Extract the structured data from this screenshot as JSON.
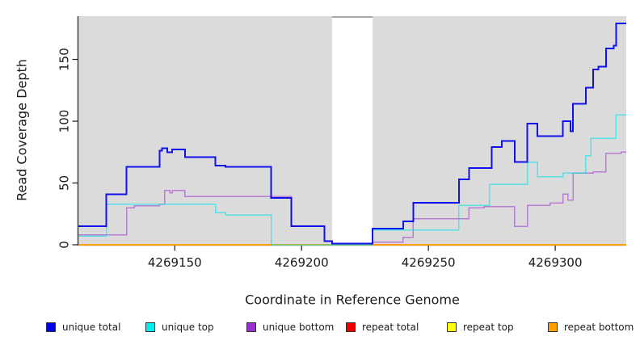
{
  "figure": {
    "xlabel": "Coordinate in Reference Genome",
    "ylabel": "Read Coverage Depth"
  },
  "legend": {
    "items": [
      {
        "label": "unique total",
        "color": "#0000EE"
      },
      {
        "label": "unique top",
        "color": "#00EEEE"
      },
      {
        "label": "unique bottom",
        "color": "#9932CC"
      },
      {
        "label": "repeat total",
        "color": "#EE0000"
      },
      {
        "label": "repeat top",
        "color": "#FFFF00"
      },
      {
        "label": "repeat bottom",
        "color": "#FFA000"
      }
    ]
  },
  "chart_data": {
    "type": "line",
    "step": true,
    "title": "",
    "xlabel": "Coordinate in Reference Genome",
    "ylabel": "Read Coverage Depth",
    "xlim": [
      4269112,
      4269328
    ],
    "ylim": [
      0,
      185
    ],
    "xticks": [
      4269150,
      4269200,
      4269250,
      4269300
    ],
    "yticks": [
      0,
      50,
      100,
      150
    ],
    "grid": false,
    "legend_position": "bottom",
    "panel_background": "#DBDBDB",
    "axis_color": "#1a1a1a",
    "gap_region": {
      "x0": 4269212,
      "x1": 4269228,
      "color": "#FFFFFF",
      "top_edge_color": "#8C8C8C"
    },
    "series": [
      {
        "name": "unique total",
        "color": "#0000EE",
        "width": 2,
        "opacity": 0.92,
        "points": [
          [
            4269112,
            15
          ],
          [
            4269123,
            41
          ],
          [
            4269131,
            63
          ],
          [
            4269144,
            76
          ],
          [
            4269145,
            78
          ],
          [
            4269147,
            75
          ],
          [
            4269149,
            77
          ],
          [
            4269154,
            71
          ],
          [
            4269166,
            64
          ],
          [
            4269170,
            63
          ],
          [
            4269188,
            38
          ],
          [
            4269196,
            15
          ],
          [
            4269209,
            3
          ],
          [
            4269212,
            1
          ],
          [
            4269228,
            13
          ],
          [
            4269240,
            19
          ],
          [
            4269244,
            34
          ],
          [
            4269262,
            53
          ],
          [
            4269266,
            62
          ],
          [
            4269275,
            79
          ],
          [
            4269279,
            84
          ],
          [
            4269284,
            67
          ],
          [
            4269289,
            98
          ],
          [
            4269293,
            88
          ],
          [
            4269303,
            100
          ],
          [
            4269306,
            92
          ],
          [
            4269307,
            114
          ],
          [
            4269312,
            127
          ],
          [
            4269315,
            142
          ],
          [
            4269317,
            144
          ],
          [
            4269320,
            159
          ],
          [
            4269323,
            161
          ],
          [
            4269324,
            179
          ],
          [
            4269328,
            179
          ]
        ]
      },
      {
        "name": "unique top",
        "color": "#00E5E8",
        "width": 1.5,
        "opacity": 0.6,
        "points": [
          [
            4269112,
            7
          ],
          [
            4269123,
            33
          ],
          [
            4269166,
            26
          ],
          [
            4269170,
            24
          ],
          [
            4269188,
            0
          ],
          [
            4269228,
            12
          ],
          [
            4269262,
            32
          ],
          [
            4269274,
            49
          ],
          [
            4269289,
            67
          ],
          [
            4269293,
            55
          ],
          [
            4269303,
            58
          ],
          [
            4269312,
            72
          ],
          [
            4269314,
            86
          ],
          [
            4269324,
            105
          ],
          [
            4269328,
            105
          ]
        ]
      },
      {
        "name": "unique bottom",
        "color": "#9932CC",
        "width": 1.5,
        "opacity": 0.55,
        "points": [
          [
            4269112,
            8
          ],
          [
            4269131,
            30
          ],
          [
            4269134,
            31.5
          ],
          [
            4269144,
            33
          ],
          [
            4269146,
            44
          ],
          [
            4269148,
            42
          ],
          [
            4269149,
            44
          ],
          [
            4269154,
            39
          ],
          [
            4269196,
            15
          ],
          [
            4269209,
            3
          ],
          [
            4269212,
            1
          ],
          [
            4269228,
            2
          ],
          [
            4269240,
            6
          ],
          [
            4269244,
            21
          ],
          [
            4269266,
            30
          ],
          [
            4269272,
            31
          ],
          [
            4269284,
            15
          ],
          [
            4269289,
            32
          ],
          [
            4269298,
            34
          ],
          [
            4269303,
            41
          ],
          [
            4269305,
            36
          ],
          [
            4269307,
            58
          ],
          [
            4269315,
            59
          ],
          [
            4269320,
            74
          ],
          [
            4269326,
            75
          ],
          [
            4269328,
            75
          ]
        ]
      },
      {
        "name": "repeat total",
        "color": "#EE0000",
        "width": 1.5,
        "opacity": 1,
        "points": [
          [
            4269112,
            0
          ],
          [
            4269328,
            0
          ]
        ]
      },
      {
        "name": "repeat top",
        "color": "#FFFF00",
        "width": 1.5,
        "opacity": 1,
        "points": [
          [
            4269112,
            0
          ],
          [
            4269328,
            0
          ]
        ]
      },
      {
        "name": "repeat bottom",
        "color": "#FFA000",
        "width": 2,
        "opacity": 1,
        "points": [
          [
            4269112,
            0
          ],
          [
            4269328,
            0
          ]
        ]
      }
    ]
  }
}
